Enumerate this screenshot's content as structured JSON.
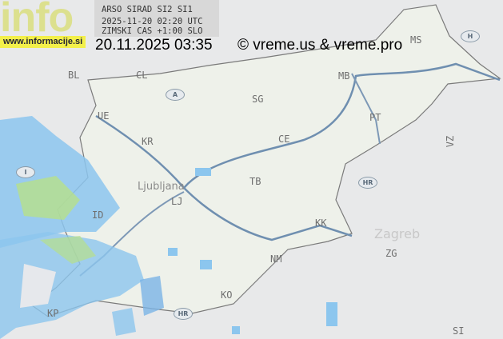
{
  "header": {
    "source": "ARSO SIRAD SI2 SI1",
    "utc_time": "2025-11-20 02:20 UTC",
    "timezone": "ZIMSKI CAS +1:00 SLO",
    "local_time": "20.11.2025 03:35",
    "copyright": "© vreme.us & vreme.pro"
  },
  "logo": {
    "text": "info",
    "url": "www.informacije.si"
  },
  "map": {
    "country_badges": [
      "A",
      "H",
      "HR",
      "I",
      "HR"
    ],
    "city_codes": [
      "BL",
      "CL",
      "UE",
      "KR",
      "MS",
      "MB",
      "SG",
      "PT",
      "CE",
      "TB",
      "LJ",
      "ID",
      "KK",
      "NM",
      "KO",
      "KP",
      "ZG",
      "SI",
      "VZ"
    ],
    "city_names": {
      "ljubljana": "Ljubljana",
      "zagreb": "Zagreb"
    },
    "colors": {
      "radar_light": "#a8d4f0",
      "radar_mid": "#6fb7e8",
      "radar_strong": "#4a90d6",
      "radar_green": "#b6e08a",
      "border": "#7a7a7a",
      "river": "#6f8fb0",
      "land": "#eef1ea"
    }
  }
}
